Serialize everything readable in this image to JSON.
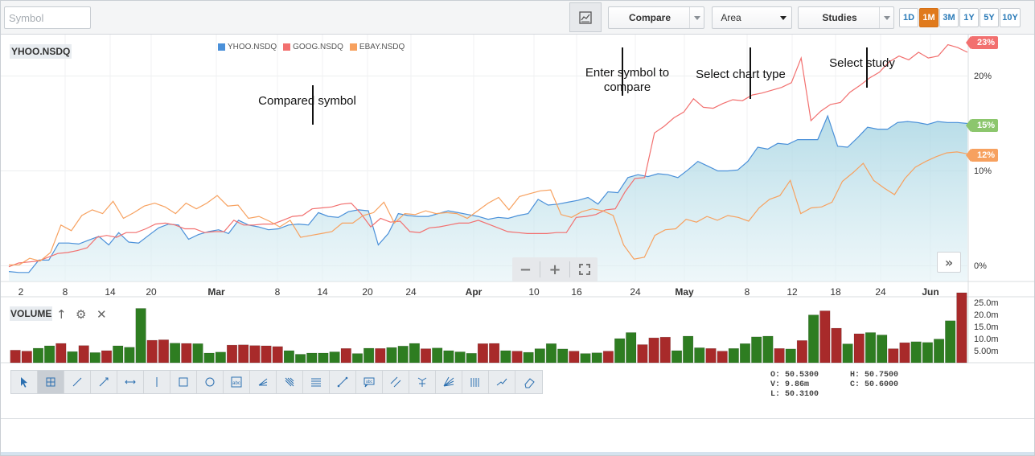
{
  "toolbar": {
    "symbol_placeholder": "Symbol",
    "compare_label": "Compare",
    "chart_type_label": "Area",
    "studies_label": "Studies",
    "periods": [
      "1D",
      "1M",
      "3M",
      "1Y",
      "5Y",
      "10Y"
    ],
    "active_period": "1M"
  },
  "chart": {
    "main_symbol": "YHOO.NSDQ",
    "legend": [
      {
        "name": "YHOO.NSDQ",
        "color": "#4a90d9"
      },
      {
        "name": "GOOG.NSDQ",
        "color": "#f2706f"
      },
      {
        "name": "EBAY.NSDQ",
        "color": "#f7a15f"
      }
    ],
    "y_labels": [
      "20%",
      "10%",
      "0%"
    ],
    "tags": [
      {
        "text": "23%",
        "color": "#f2706f"
      },
      {
        "text": "15%",
        "color": "#8cc66d"
      },
      {
        "text": "12%",
        "color": "#f7a15f"
      }
    ],
    "x_labels": [
      "2",
      "8",
      "14",
      "20",
      "Mar",
      "8",
      "14",
      "20",
      "24",
      "Apr",
      "10",
      "16",
      "24",
      "May",
      "8",
      "12",
      "18",
      "24",
      "Jun"
    ],
    "month_labels": [
      "Mar",
      "Apr",
      "May",
      "Jun"
    ],
    "annotations": {
      "compared_symbol": "Compared symbol",
      "enter_symbol": "Enter symbol to compare",
      "select_chart_type": "Select chart type",
      "select_study": "Select study"
    }
  },
  "chart_data": {
    "type": "line",
    "ylabel": "",
    "ylim": [
      -1,
      25
    ],
    "series": [
      {
        "name": "YHOO.NSDQ",
        "values": [
          -0.6,
          -0.7,
          -0.7,
          0.6,
          0.6,
          2.4,
          2.4,
          2.3,
          2.7,
          3.1,
          2.2,
          3.5,
          2.5,
          2.4,
          3.2,
          4.0,
          4.4,
          4.3,
          2.8,
          3.3,
          3.6,
          3.8,
          3.4,
          4.8,
          4.3,
          4.1,
          3.8,
          3.9,
          4.3,
          4.4,
          4.3,
          5.6,
          5.2,
          5.1,
          5.7,
          5.9,
          5.8,
          2.2,
          3.4,
          5.5,
          5.3,
          5.2,
          5.2,
          5.5,
          5.8,
          5.6,
          5.4,
          5.2,
          4.9,
          5.1,
          5.0,
          5.3,
          5.5,
          7.0,
          6.4,
          6.5,
          6.7,
          6.9,
          7.2,
          6.5,
          7.8,
          7.7,
          9.3,
          9.6,
          9.4,
          9.7,
          9.6,
          9.3,
          10.1,
          11.0,
          10.5,
          10.0,
          10.0,
          10.1,
          11.0,
          12.5,
          12.3,
          12.9,
          12.8,
          13.3,
          13.3,
          13.3,
          15.8,
          12.6,
          12.5,
          13.5,
          14.6,
          14.4,
          14.4,
          15.1,
          15.2,
          15.1,
          14.9,
          15.2,
          15.1,
          15.1,
          15.0
        ]
      },
      {
        "name": "GOOG.NSDQ",
        "values": [
          -0.1,
          0.3,
          0.4,
          0.5,
          0.9,
          1.3,
          1.4,
          1.6,
          1.9,
          3.0,
          3.2,
          3.0,
          3.5,
          3.5,
          3.9,
          4.4,
          4.5,
          4.3,
          3.9,
          3.9,
          3.5,
          3.6,
          3.6,
          4.8,
          4.3,
          4.3,
          4.4,
          4.4,
          4.8,
          5.2,
          5.3,
          6.0,
          6.1,
          6.2,
          6.5,
          6.6,
          5.5,
          4.1,
          5.0,
          4.6,
          4.7,
          3.6,
          3.5,
          4.0,
          4.1,
          4.3,
          4.5,
          4.5,
          4.8,
          4.4,
          4.0,
          3.6,
          3.5,
          3.4,
          3.4,
          3.4,
          3.5,
          3.5,
          5.1,
          5.2,
          5.4,
          5.9,
          6.0,
          7.8,
          9.2,
          9.3,
          14.0,
          14.7,
          15.6,
          16.2,
          17.6,
          16.7,
          16.6,
          17.1,
          17.5,
          17.4,
          18.0,
          18.2,
          18.5,
          18.8,
          19.3,
          21.9,
          15.3,
          16.3,
          17.0,
          17.2,
          18.3,
          19.0,
          19.8,
          20.4,
          21.5,
          22.1,
          21.7,
          22.5,
          21.9,
          22.1,
          23.3,
          23.0,
          22.5
        ]
      },
      {
        "name": "EBAY.NSDQ",
        "values": [
          0.1,
          0.1,
          0.8,
          0.5,
          1.4,
          4.3,
          3.7,
          5.3,
          5.9,
          5.5,
          6.8,
          5.0,
          5.6,
          6.3,
          6.6,
          6.2,
          5.5,
          6.6,
          6.0,
          6.6,
          7.4,
          6.3,
          6.4,
          5.0,
          5.2,
          4.7,
          4.1,
          4.8,
          3.0,
          3.2,
          3.4,
          3.6,
          4.5,
          4.5,
          5.3,
          5.6,
          6.7,
          4.5,
          5.5,
          5.4,
          5.8,
          5.5,
          5.6,
          5.5,
          5.0,
          5.8,
          6.6,
          7.2,
          5.9,
          7.3,
          7.6,
          7.9,
          8.0,
          5.4,
          5.1,
          5.7,
          6.0,
          5.8,
          5.3,
          2.2,
          0.7,
          0.9,
          3.2,
          3.8,
          3.9,
          4.9,
          4.6,
          5.2,
          4.8,
          5.3,
          5.1,
          4.7,
          6.1,
          7.0,
          7.4,
          9.0,
          5.5,
          6.1,
          6.2,
          6.7,
          8.9,
          9.8,
          10.8,
          9.0,
          8.2,
          7.5,
          9.2,
          10.4,
          11.0,
          11.5,
          11.9,
          12.0,
          11.8
        ]
      }
    ],
    "volume": {
      "axis_labels": [
        "25.0m",
        "20.0m",
        "15.0m",
        "10.0m",
        "5.00m"
      ],
      "values": [
        5.2,
        4.8,
        6.0,
        7.0,
        8.0,
        4.6,
        7.1,
        4.2,
        5.0,
        7.0,
        6.4,
        22.5,
        9.3,
        9.5,
        8.1,
        8.0,
        7.9,
        4.0,
        4.4,
        7.3,
        7.4,
        7.1,
        7.0,
        6.7,
        5.0,
        3.5,
        4.0,
        4.0,
        4.5,
        5.9,
        3.8,
        6.0,
        5.9,
        6.3,
        6.9,
        8.0,
        5.8,
        6.1,
        5.0,
        4.5,
        3.9,
        7.9,
        8.0,
        5.0,
        4.8,
        4.3,
        5.8,
        7.9,
        5.7,
        4.8,
        3.8,
        4.1,
        4.8,
        10.0,
        12.5,
        7.5,
        10.3,
        10.6,
        5.0,
        11.0,
        6.2,
        5.9,
        4.8,
        5.9,
        7.9,
        10.7,
        11.0,
        5.9,
        5.7,
        9.2,
        19.8,
        21.5,
        14.3,
        7.8,
        12.0,
        12.5,
        11.5,
        5.8,
        8.3,
        8.7,
        8.4,
        9.8,
        17.4,
        29.0
      ],
      "up": [
        0,
        0,
        1,
        1,
        0,
        1,
        0,
        1,
        0,
        1,
        1,
        1,
        0,
        0,
        1,
        0,
        1,
        1,
        1,
        0,
        0,
        0,
        0,
        0,
        1,
        1,
        1,
        1,
        1,
        0,
        1,
        1,
        0,
        1,
        1,
        1,
        0,
        1,
        1,
        1,
        1,
        0,
        0,
        1,
        0,
        1,
        1,
        1,
        1,
        0,
        1,
        1,
        0,
        1,
        1,
        0,
        0,
        0,
        1,
        1,
        1,
        0,
        0,
        1,
        1,
        1,
        1,
        0,
        1,
        0,
        1,
        0,
        0,
        1,
        0,
        1,
        1,
        0,
        0,
        1,
        1,
        1,
        1,
        0
      ]
    }
  },
  "volume_panel": {
    "label": "VOLUME"
  },
  "draw_tools": [
    "cursor-tool",
    "crosshair-tool",
    "line-tool",
    "ray-tool",
    "horizontal-line-tool",
    "vertical-line-tool",
    "rectangle-tool",
    "ellipse-tool",
    "annotation-tool",
    "fibonacci-tool",
    "fib-fan-tool",
    "fib-retracement-tool",
    "segment-tool",
    "callout-tool",
    "channel-tool",
    "pitchfork-tool",
    "gann-fan-tool",
    "time-cycle-tool",
    "trend-arrow-tool",
    "eraser-tool"
  ],
  "ohlc": {
    "o": "O: 50.5300",
    "v": "V: 9.86m",
    "l": "L: 50.3100",
    "h": "H: 50.7500",
    "c": "C: 50.6000"
  }
}
